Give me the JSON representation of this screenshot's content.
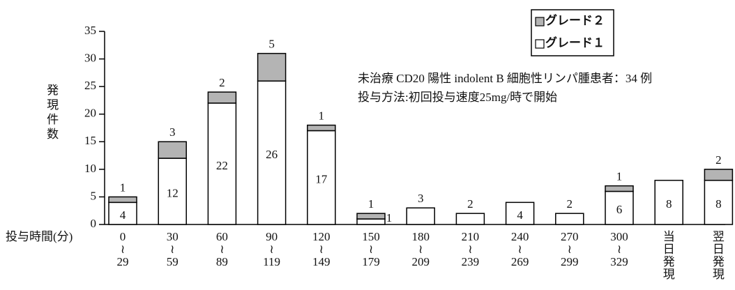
{
  "chart_data": {
    "type": "stacked_bar",
    "y_label": "発現件数",
    "x_label": "投与時間(分)",
    "annotations": [
      "未治療 CD20 陽性 indolent B 細胞性リンパ腫患者：34 例",
      "投与方法:初回投与速度25mg/時で開始"
    ],
    "categories": [
      [
        "0",
        "≀",
        "29"
      ],
      [
        "30",
        "≀",
        "59"
      ],
      [
        "60",
        "≀",
        "89"
      ],
      [
        "90",
        "≀",
        "119"
      ],
      [
        "120",
        "≀",
        "149"
      ],
      [
        "150",
        "≀",
        "179"
      ],
      [
        "180",
        "≀",
        "209"
      ],
      [
        "210",
        "≀",
        "239"
      ],
      [
        "240",
        "≀",
        "269"
      ],
      [
        "270",
        "≀",
        "299"
      ],
      [
        "300",
        "≀",
        "329"
      ],
      [
        "当",
        "日",
        "発",
        "現"
      ],
      [
        "翌",
        "日",
        "発",
        "現"
      ]
    ],
    "series": [
      {
        "name": "グレード１",
        "color": "#ffffff",
        "values": [
          4,
          12,
          22,
          26,
          17,
          1,
          3,
          2,
          4,
          2,
          6,
          8,
          8
        ]
      },
      {
        "name": "グレード２",
        "color": "#b4b4b4",
        "values": [
          1,
          3,
          2,
          5,
          1,
          1,
          null,
          null,
          null,
          null,
          1,
          null,
          2
        ]
      }
    ],
    "ylim": [
      0,
      35
    ],
    "yticks": [
      0,
      5,
      10,
      15,
      20,
      25,
      30,
      35
    ],
    "legend": "upper right"
  }
}
